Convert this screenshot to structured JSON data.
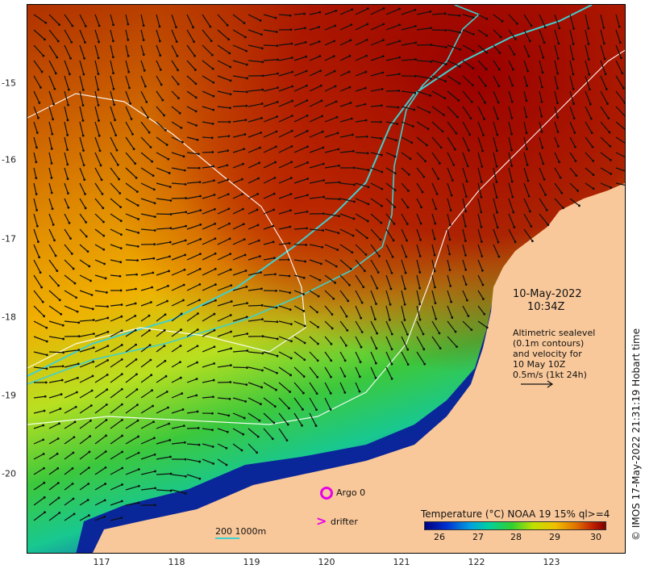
{
  "map": {
    "x_ticks": [
      "117",
      "118",
      "119",
      "120",
      "121",
      "122",
      "123"
    ],
    "y_ticks": [
      "-15",
      "-16",
      "-17",
      "-18",
      "-19",
      "-20"
    ],
    "date": "10-May-2022",
    "time": "10:34Z",
    "altimetry_note": [
      "Altimetric sealevel",
      "(0.1m contours)",
      "and velocity for",
      "10 May 10Z",
      "0.5m/s (1kt 24h)"
    ],
    "credit": "© IMOS 17-May-2022 21:31:19 Hobart time",
    "colorbar_title": "Temperature (°C) NOAA 19 15% ql>=4",
    "colorbar_ticks": [
      "26",
      "27",
      "28",
      "29",
      "30"
    ],
    "legend": {
      "argo": "Argo 0",
      "drifter": "drifter",
      "drifter_icon": ">",
      "isobaths": "200  1000m"
    },
    "colors": {
      "land": "#f9c89a",
      "cold": "#0a1a8a",
      "mid": "#2ec83a",
      "warm": "#e89a00",
      "hot": "#a00000",
      "isobath": "#40d0d0",
      "marker": "#e800e8"
    }
  }
}
